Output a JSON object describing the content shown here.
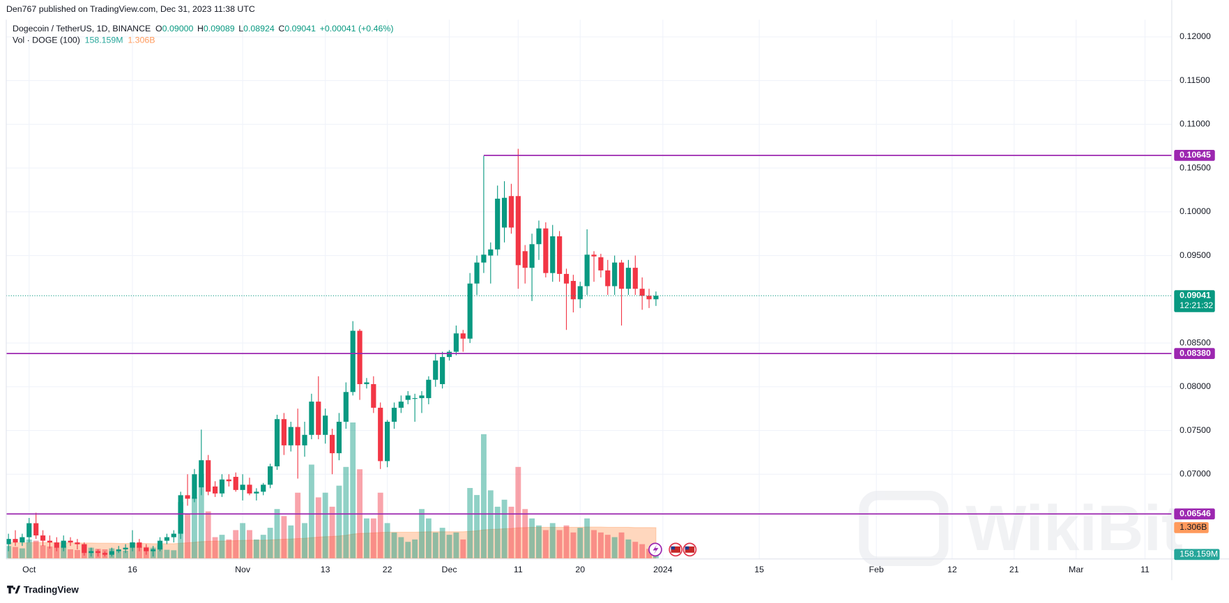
{
  "header": "Den767 published on TradingView.com, Dec 31, 2023 11:38 UTC",
  "footer": "TradingView",
  "watermark": "WikiBit",
  "chart_data": {
    "type": "candlestick",
    "legend": {
      "symbol": "Dogecoin / TetherUS, 1D, BINANCE",
      "ohlc": [
        {
          "label": "O",
          "value": "0.09000"
        },
        {
          "label": "H",
          "value": "0.09089"
        },
        {
          "label": "L",
          "value": "0.08924"
        },
        {
          "label": "C",
          "value": "0.09041"
        }
      ],
      "change": "+0.00041 (+0.46%)"
    },
    "volume_legend": {
      "name": "Vol · DOGE (100)",
      "volume": "158.159M",
      "ma": "1.306B"
    },
    "last_price_label": "0.09041",
    "countdown": "12:21:32",
    "up_color": "#089981",
    "down_color": "#f23645",
    "ma_color": "#ff9a5c",
    "level_color": "#9c27b0",
    "grid": true,
    "x": [
      "2023-09-28",
      "2023-09-29",
      "2023-09-30",
      "2023-10-01",
      "2023-10-02",
      "2023-10-03",
      "2023-10-04",
      "2023-10-05",
      "2023-10-06",
      "2023-10-07",
      "2023-10-08",
      "2023-10-09",
      "2023-10-10",
      "2023-10-11",
      "2023-10-12",
      "2023-10-13",
      "2023-10-14",
      "2023-10-15",
      "2023-10-16",
      "2023-10-17",
      "2023-10-18",
      "2023-10-19",
      "2023-10-20",
      "2023-10-21",
      "2023-10-22",
      "2023-10-23",
      "2023-10-24",
      "2023-10-25",
      "2023-10-26",
      "2023-10-27",
      "2023-10-28",
      "2023-10-29",
      "2023-10-30",
      "2023-10-31",
      "2023-11-01",
      "2023-11-02",
      "2023-11-03",
      "2023-11-04",
      "2023-11-05",
      "2023-11-06",
      "2023-11-07",
      "2023-11-08",
      "2023-11-09",
      "2023-11-10",
      "2023-11-11",
      "2023-11-12",
      "2023-11-13",
      "2023-11-14",
      "2023-11-15",
      "2023-11-16",
      "2023-11-17",
      "2023-11-18",
      "2023-11-19",
      "2023-11-20",
      "2023-11-21",
      "2023-11-22",
      "2023-11-23",
      "2023-11-24",
      "2023-11-25",
      "2023-11-26",
      "2023-11-27",
      "2023-11-28",
      "2023-11-29",
      "2023-11-30",
      "2023-12-01",
      "2023-12-02",
      "2023-12-03",
      "2023-12-04",
      "2023-12-05",
      "2023-12-06",
      "2023-12-07",
      "2023-12-08",
      "2023-12-09",
      "2023-12-10",
      "2023-12-11",
      "2023-12-12",
      "2023-12-13",
      "2023-12-14",
      "2023-12-15",
      "2023-12-16",
      "2023-12-17",
      "2023-12-18",
      "2023-12-19",
      "2023-12-20",
      "2023-12-21",
      "2023-12-22",
      "2023-12-23",
      "2023-12-24",
      "2023-12-25",
      "2023-12-26",
      "2023-12-27",
      "2023-12-28",
      "2023-12-29",
      "2023-12-30",
      "2023-12-31"
    ],
    "open": [
      0.062,
      0.0626,
      0.0622,
      0.0628,
      0.0644,
      0.063,
      0.0624,
      0.0622,
      0.0616,
      0.0624,
      0.0622,
      0.062,
      0.061,
      0.0612,
      0.061,
      0.0608,
      0.0612,
      0.0614,
      0.0616,
      0.0622,
      0.0616,
      0.0612,
      0.0614,
      0.0624,
      0.0628,
      0.0632,
      0.0676,
      0.0672,
      0.0685,
      0.0716,
      0.0686,
      0.0678,
      0.0694,
      0.0697,
      0.0682,
      0.0688,
      0.0678,
      0.068,
      0.0688,
      0.0709,
      0.0763,
      0.0733,
      0.0754,
      0.0733,
      0.0745,
      0.0783,
      0.0745,
      0.0745,
      0.0724,
      0.076,
      0.0794,
      0.0864,
      0.0803,
      0.0803,
      0.0776,
      0.0715,
      0.076,
      0.0776,
      0.0785,
      0.0787,
      0.0787,
      0.0787,
      0.0808,
      0.0803,
      0.0834,
      0.084,
      0.0861,
      0.0855,
      0.0918,
      0.0942,
      0.095,
      0.0957,
      0.0982,
      0.1018,
      0.1018,
      0.0955,
      0.0936,
      0.0963,
      0.0981,
      0.093,
      0.0972,
      0.0929,
      0.0921,
      0.09,
      0.0915,
      0.0951,
      0.0948,
      0.0933,
      0.0915,
      0.0942,
      0.0912,
      0.0936,
      0.0912,
      0.0904,
      0.09
    ],
    "high": [
      0.0632,
      0.0636,
      0.0632,
      0.065,
      0.0656,
      0.0636,
      0.063,
      0.0628,
      0.063,
      0.0628,
      0.0626,
      0.0622,
      0.0616,
      0.0614,
      0.0612,
      0.0616,
      0.0618,
      0.062,
      0.0636,
      0.0626,
      0.062,
      0.0618,
      0.0628,
      0.0632,
      0.0636,
      0.068,
      0.07,
      0.0706,
      0.0751,
      0.0722,
      0.0692,
      0.07,
      0.07,
      0.0702,
      0.07,
      0.0696,
      0.0684,
      0.069,
      0.0712,
      0.0768,
      0.077,
      0.076,
      0.0775,
      0.076,
      0.0792,
      0.0812,
      0.0775,
      0.0752,
      0.077,
      0.0805,
      0.0875,
      0.0866,
      0.081,
      0.0812,
      0.0782,
      0.0762,
      0.0782,
      0.079,
      0.0795,
      0.0792,
      0.0795,
      0.0812,
      0.0838,
      0.084,
      0.0842,
      0.087,
      0.0865,
      0.093,
      0.095,
      0.1064,
      0.0965,
      0.103,
      0.1035,
      0.1032,
      0.1072,
      0.0962,
      0.0975,
      0.099,
      0.0988,
      0.0985,
      0.0978,
      0.0935,
      0.0928,
      0.092,
      0.098,
      0.0955,
      0.0952,
      0.0945,
      0.095,
      0.0945,
      0.0945,
      0.095,
      0.0925,
      0.0912,
      0.09089
    ],
    "low": [
      0.0612,
      0.0618,
      0.0618,
      0.0622,
      0.0626,
      0.0618,
      0.0615,
      0.0612,
      0.0612,
      0.0618,
      0.0614,
      0.0607,
      0.0606,
      0.0606,
      0.0606,
      0.0606,
      0.061,
      0.061,
      0.0612,
      0.0612,
      0.0608,
      0.0606,
      0.0612,
      0.062,
      0.0622,
      0.0626,
      0.0664,
      0.0668,
      0.0676,
      0.0676,
      0.0674,
      0.0674,
      0.0686,
      0.068,
      0.067,
      0.0676,
      0.067,
      0.0676,
      0.0684,
      0.0705,
      0.0722,
      0.0726,
      0.0695,
      0.072,
      0.074,
      0.074,
      0.0735,
      0.07,
      0.0716,
      0.0752,
      0.079,
      0.0785,
      0.0798,
      0.077,
      0.0706,
      0.0708,
      0.0752,
      0.077,
      0.078,
      0.076,
      0.077,
      0.078,
      0.08,
      0.0798,
      0.083,
      0.0836,
      0.084,
      0.085,
      0.0905,
      0.093,
      0.0918,
      0.095,
      0.0965,
      0.0975,
      0.0912,
      0.0918,
      0.0898,
      0.0945,
      0.0925,
      0.092,
      0.092,
      0.0865,
      0.0885,
      0.089,
      0.0905,
      0.092,
      0.0925,
      0.0905,
      0.0905,
      0.087,
      0.0905,
      0.0905,
      0.0888,
      0.089,
      0.08924
    ],
    "close": [
      0.0626,
      0.0622,
      0.0628,
      0.0644,
      0.063,
      0.0624,
      0.0622,
      0.0616,
      0.0624,
      0.0622,
      0.062,
      0.061,
      0.0612,
      0.061,
      0.0608,
      0.0612,
      0.0614,
      0.0616,
      0.0622,
      0.0616,
      0.0612,
      0.0614,
      0.0624,
      0.0628,
      0.0632,
      0.0676,
      0.0672,
      0.07,
      0.0716,
      0.068,
      0.0678,
      0.0694,
      0.0692,
      0.0682,
      0.0688,
      0.0678,
      0.068,
      0.0688,
      0.0709,
      0.0763,
      0.0733,
      0.0754,
      0.0733,
      0.0745,
      0.0783,
      0.0745,
      0.0767,
      0.0724,
      0.076,
      0.0794,
      0.0864,
      0.0803,
      0.0805,
      0.0776,
      0.0715,
      0.076,
      0.0776,
      0.0783,
      0.079,
      0.0787,
      0.079,
      0.0808,
      0.083,
      0.0834,
      0.084,
      0.0861,
      0.0855,
      0.0918,
      0.0942,
      0.0951,
      0.0957,
      0.1015,
      0.1016,
      0.0982,
      0.0939,
      0.0936,
      0.0963,
      0.0981,
      0.093,
      0.0972,
      0.0929,
      0.0918,
      0.09,
      0.0915,
      0.0951,
      0.0949,
      0.0933,
      0.0915,
      0.0942,
      0.0912,
      0.0936,
      0.0912,
      0.0904,
      0.09,
      0.09041
    ],
    "volume": [
      520000000.0,
      480000000.0,
      420000000.0,
      800000000.0,
      750000000.0,
      550000000.0,
      500000000.0,
      460000000.0,
      520000000.0,
      380000000.0,
      350000000.0,
      600000000.0,
      450000000.0,
      400000000.0,
      380000000.0,
      420000000.0,
      300000000.0,
      320000000.0,
      680000000.0,
      500000000.0,
      480000000.0,
      450000000.0,
      560000000.0,
      360000000.0,
      340000000.0,
      2400000000.0,
      1900000000.0,
      2600000000.0,
      3600000000.0,
      2000000000.0,
      900000000.0,
      1000000000.0,
      800000000.0,
      1200000000.0,
      1500000000.0,
      1200000000.0,
      800000000.0,
      1000000000.0,
      1300000000.0,
      2100000000.0,
      1800000000.0,
      1400000000.0,
      2800000000.0,
      1500000000.0,
      4000000000.0,
      2600000000.0,
      2800000000.0,
      2200000000.0,
      3100000000.0,
      3900000000.0,
      5800000000.0,
      3800000000.0,
      1700000000.0,
      1700000000.0,
      2800000000.0,
      1500000000.0,
      1100000000.0,
      900000000.0,
      700000000.0,
      800000000.0,
      2100000000.0,
      1700000000.0,
      1100000000.0,
      1300000000.0,
      1000000000.0,
      1100000000.0,
      800000000.0,
      3000000000.0,
      2700000000.0,
      5300000000.0,
      2900000000.0,
      2200000000.0,
      2500000000.0,
      2200000000.0,
      3900000000.0,
      2100000000.0,
      1700000000.0,
      1400000000.0,
      1200000000.0,
      1500000000.0,
      1200000000.0,
      1400000000.0,
      1100000000.0,
      1300000000.0,
      1700000000.0,
      1200000000.0,
      1100000000.0,
      1000000000.0,
      900000000.0,
      1100000000.0,
      800000000.0,
      700000000.0,
      600000000.0,
      400000000.0,
      158159000
    ],
    "volume_ma": [
      660000000.0,
      660000000.0,
      650000000.0,
      660000000.0,
      670000000.0,
      670000000.0,
      660000000.0,
      660000000.0,
      660000000.0,
      650000000.0,
      650000000.0,
      650000000.0,
      650000000.0,
      640000000.0,
      640000000.0,
      640000000.0,
      630000000.0,
      630000000.0,
      630000000.0,
      630000000.0,
      630000000.0,
      620000000.0,
      620000000.0,
      620000000.0,
      620000000.0,
      640000000.0,
      660000000.0,
      680000000.0,
      710000000.0,
      720000000.0,
      730000000.0,
      730000000.0,
      740000000.0,
      750000000.0,
      760000000.0,
      770000000.0,
      770000000.0,
      770000000.0,
      780000000.0,
      800000000.0,
      810000000.0,
      820000000.0,
      840000000.0,
      850000000.0,
      880000000.0,
      900000000.0,
      920000000.0,
      930000000.0,
      950000000.0,
      980000000.0,
      1030000000.0,
      1060000000.0,
      1070000000.0,
      1080000000.0,
      1100000000.0,
      1110000000.0,
      1110000000.0,
      1110000000.0,
      1110000000.0,
      1110000000.0,
      1120000000.0,
      1130000000.0,
      1130000000.0,
      1130000000.0,
      1130000000.0,
      1130000000.0,
      1130000000.0,
      1150000000.0,
      1170000000.0,
      1210000000.0,
      1230000000.0,
      1240000000.0,
      1260000000.0,
      1270000000.0,
      1300000000.0,
      1310000000.0,
      1320000000.0,
      1320000000.0,
      1320000000.0,
      1320000000.0,
      1320000000.0,
      1320000000.0,
      1320000000.0,
      1320000000.0,
      1330000000.0,
      1330000000.0,
      1330000000.0,
      1320000000.0,
      1320000000.0,
      1320000000.0,
      1320000000.0,
      1310000000.0,
      1310000000.0,
      1310000000.0,
      1306000000.0
    ],
    "xlim": [
      "2023-09-27",
      "2024-03-15"
    ],
    "xticks": [
      {
        "value": "2023-10-01",
        "label": "Oct"
      },
      {
        "value": "2023-10-16",
        "label": "16"
      },
      {
        "value": "2023-11-01",
        "label": "Nov"
      },
      {
        "value": "2023-11-13",
        "label": "13"
      },
      {
        "value": "2023-11-22",
        "label": "22"
      },
      {
        "value": "2023-12-01",
        "label": "Dec"
      },
      {
        "value": "2023-12-11",
        "label": "11"
      },
      {
        "value": "2023-12-20",
        "label": "20"
      },
      {
        "value": "2024-01-01",
        "label": "2024"
      },
      {
        "value": "2024-01-15",
        "label": "15"
      },
      {
        "value": "2024-02-01",
        "label": "Feb"
      },
      {
        "value": "2024-02-12",
        "label": "12"
      },
      {
        "value": "2024-02-21",
        "label": "21"
      },
      {
        "value": "2024-03-01",
        "label": "Mar"
      },
      {
        "value": "2024-03-11",
        "label": "11"
      }
    ],
    "ylim": [
      0.0604,
      0.1242
    ],
    "yticks": [
      {
        "value": 0.07,
        "label": "0.07000"
      },
      {
        "value": 0.075,
        "label": "0.07500"
      },
      {
        "value": 0.08,
        "label": "0.08000"
      },
      {
        "value": 0.085,
        "label": "0.08500"
      },
      {
        "value": 0.095,
        "label": "0.09500"
      },
      {
        "value": 0.1,
        "label": "0.10000"
      },
      {
        "value": 0.105,
        "label": "0.10500"
      },
      {
        "value": 0.11,
        "label": "0.11000"
      },
      {
        "value": 0.115,
        "label": "0.11500"
      },
      {
        "value": 0.12,
        "label": "0.12000"
      }
    ],
    "volume_ylim": [
      0,
      23850000000
    ],
    "levels": [
      {
        "value": 0.10645,
        "label": "0.10645",
        "from": "2023-12-06"
      },
      {
        "value": 0.0838,
        "label": "0.08380"
      },
      {
        "value": 0.06546,
        "label": "0.06546"
      }
    ]
  }
}
